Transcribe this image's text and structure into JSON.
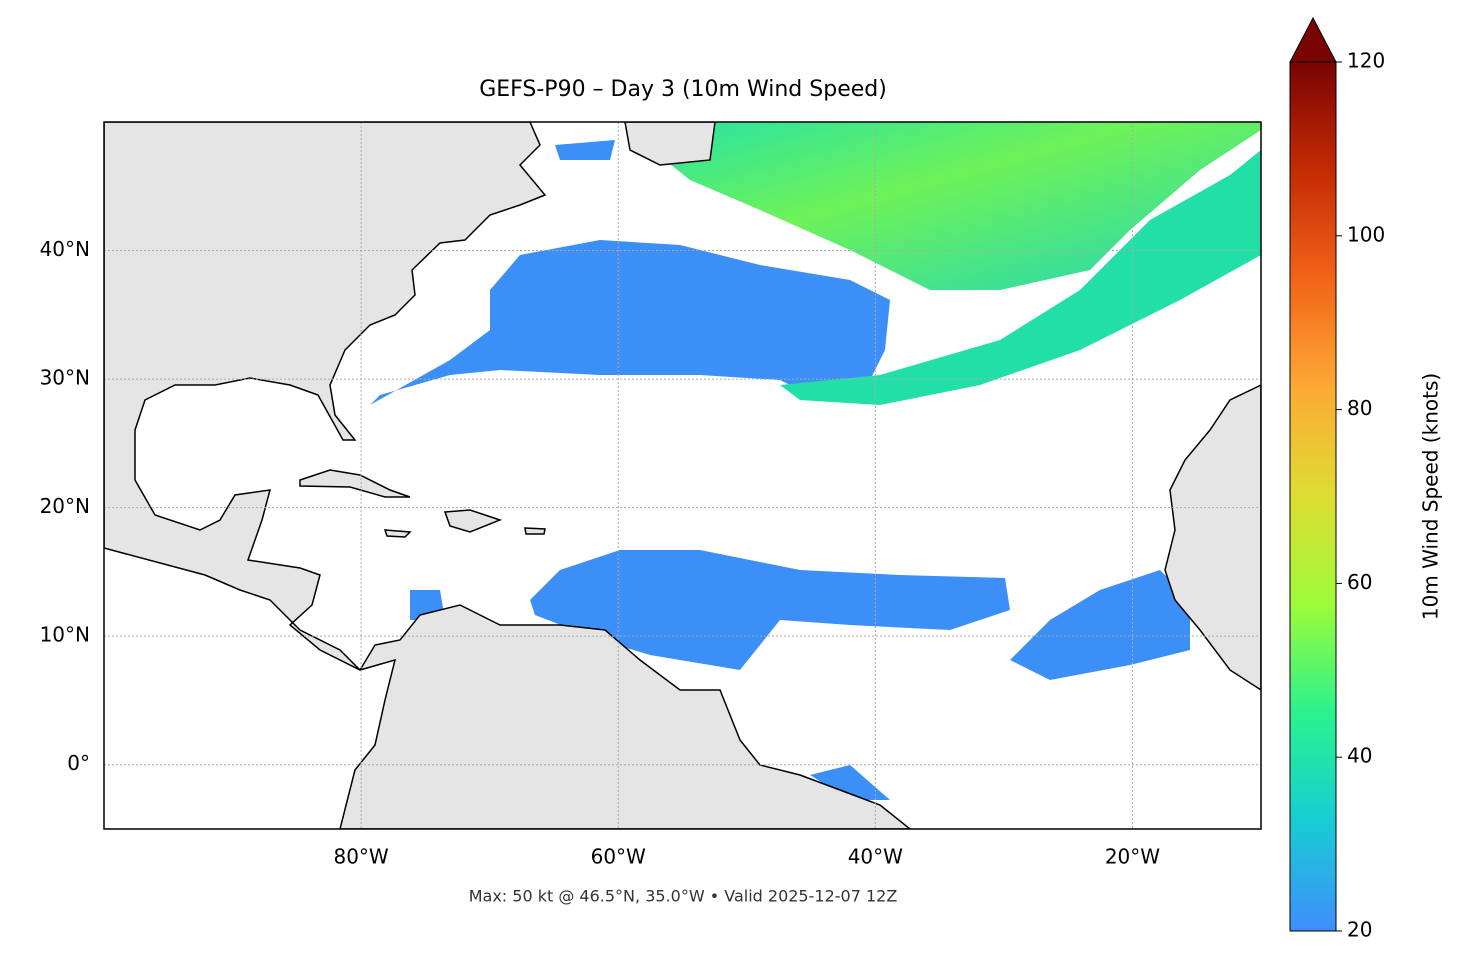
{
  "chart_data": {
    "type": "map",
    "title": "GEFS-P90 – Day 3 (10m Wind Speed)",
    "annotation": "Max: 50 kt @ 46.5°N, 35.0°W • Valid 2025-12-07 12Z",
    "xlim": [
      -100,
      -10
    ],
    "ylim": [
      -5,
      50
    ],
    "xticks": [
      {
        "value": -80,
        "label": "80°W"
      },
      {
        "value": -60,
        "label": "60°W"
      },
      {
        "value": -40,
        "label": "40°W"
      },
      {
        "value": -20,
        "label": "20°W"
      }
    ],
    "yticks": [
      {
        "value": 0,
        "label": "0°"
      },
      {
        "value": 10,
        "label": "10°N"
      },
      {
        "value": 20,
        "label": "20°N"
      },
      {
        "value": 30,
        "label": "30°N"
      },
      {
        "value": 40,
        "label": "40°N"
      }
    ],
    "grid": true,
    "colorbar": {
      "label": "10m Wind Speed (knots)",
      "lim": [
        20,
        120
      ],
      "ticks": [
        20,
        40,
        60,
        80,
        100,
        120
      ],
      "colors": [
        "#3f8efc",
        "#18ccd4",
        "#2af28d",
        "#9dfb3a",
        "#dedd32",
        "#fdaa34",
        "#f26419",
        "#c52b04",
        "#7a0403"
      ]
    }
  }
}
